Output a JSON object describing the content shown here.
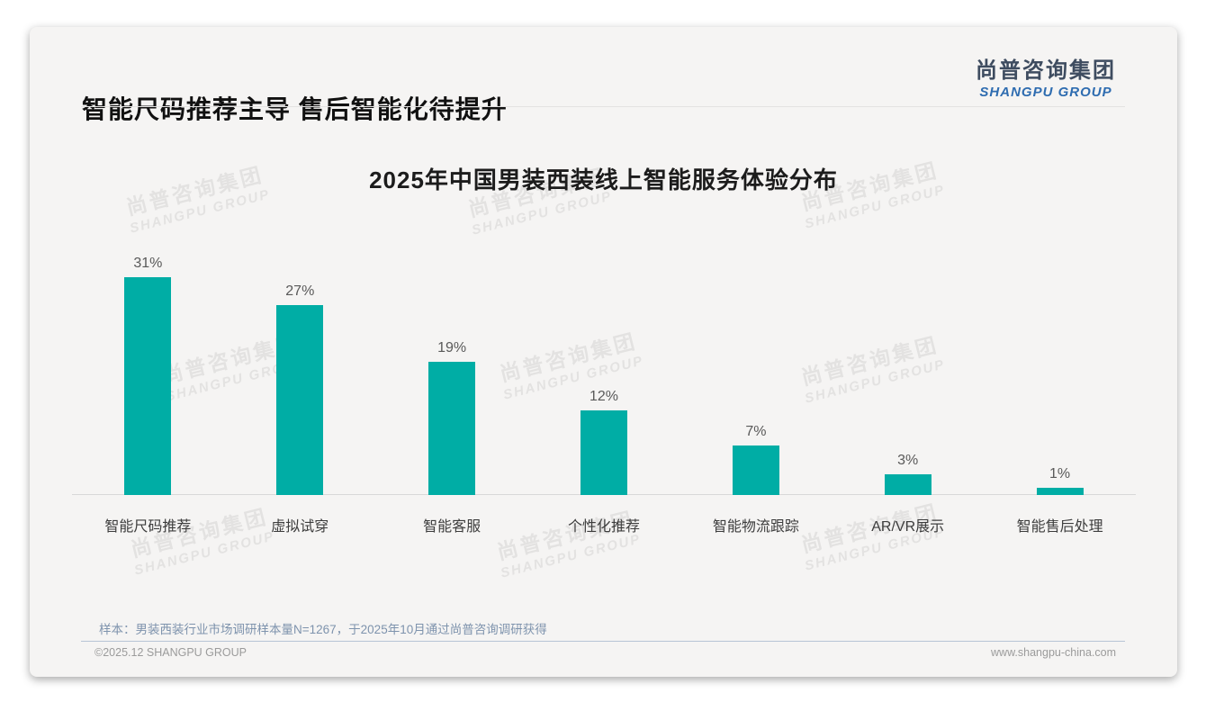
{
  "page": {
    "title": "智能尺码推荐主导 售后智能化待提升",
    "logo": {
      "cn": "尚普咨询集团",
      "en": "SHANGPU GROUP"
    },
    "watermark": {
      "cn": "尚普咨询集团",
      "en": "SHANGPU GROUP"
    },
    "note": "样本：男装西装行业市场调研样本量N=1267，于2025年10月通过尚普咨询调研获得",
    "footer": {
      "copyright": "©2025.12 SHANGPU GROUP",
      "website": "www.shangpu-china.com"
    }
  },
  "chart_data": {
    "type": "bar",
    "title": "2025年中国男装西装线上智能服务体验分布",
    "categories": [
      "智能尺码推荐",
      "虚拟试穿",
      "智能客服",
      "个性化推荐",
      "智能物流跟踪",
      "AR/VR展示",
      "智能售后处理"
    ],
    "values": [
      31,
      27,
      19,
      12,
      7,
      3,
      1
    ],
    "value_labels": [
      "31%",
      "27%",
      "19%",
      "12%",
      "7%",
      "3%",
      "1%"
    ],
    "unit": "%",
    "ylim": [
      0,
      33
    ],
    "grid": false,
    "legend": false,
    "bar_color": "#00ADA5"
  },
  "colors": {
    "bar": "#00ADA5",
    "card_bg": "#f5f4f3",
    "logo_cn": "#3e4c60",
    "logo_en": "#2e6cb0",
    "note_text": "#7e93ad",
    "footer_text": "#9b9b9b",
    "footer_divider": "#b7c4d6"
  }
}
